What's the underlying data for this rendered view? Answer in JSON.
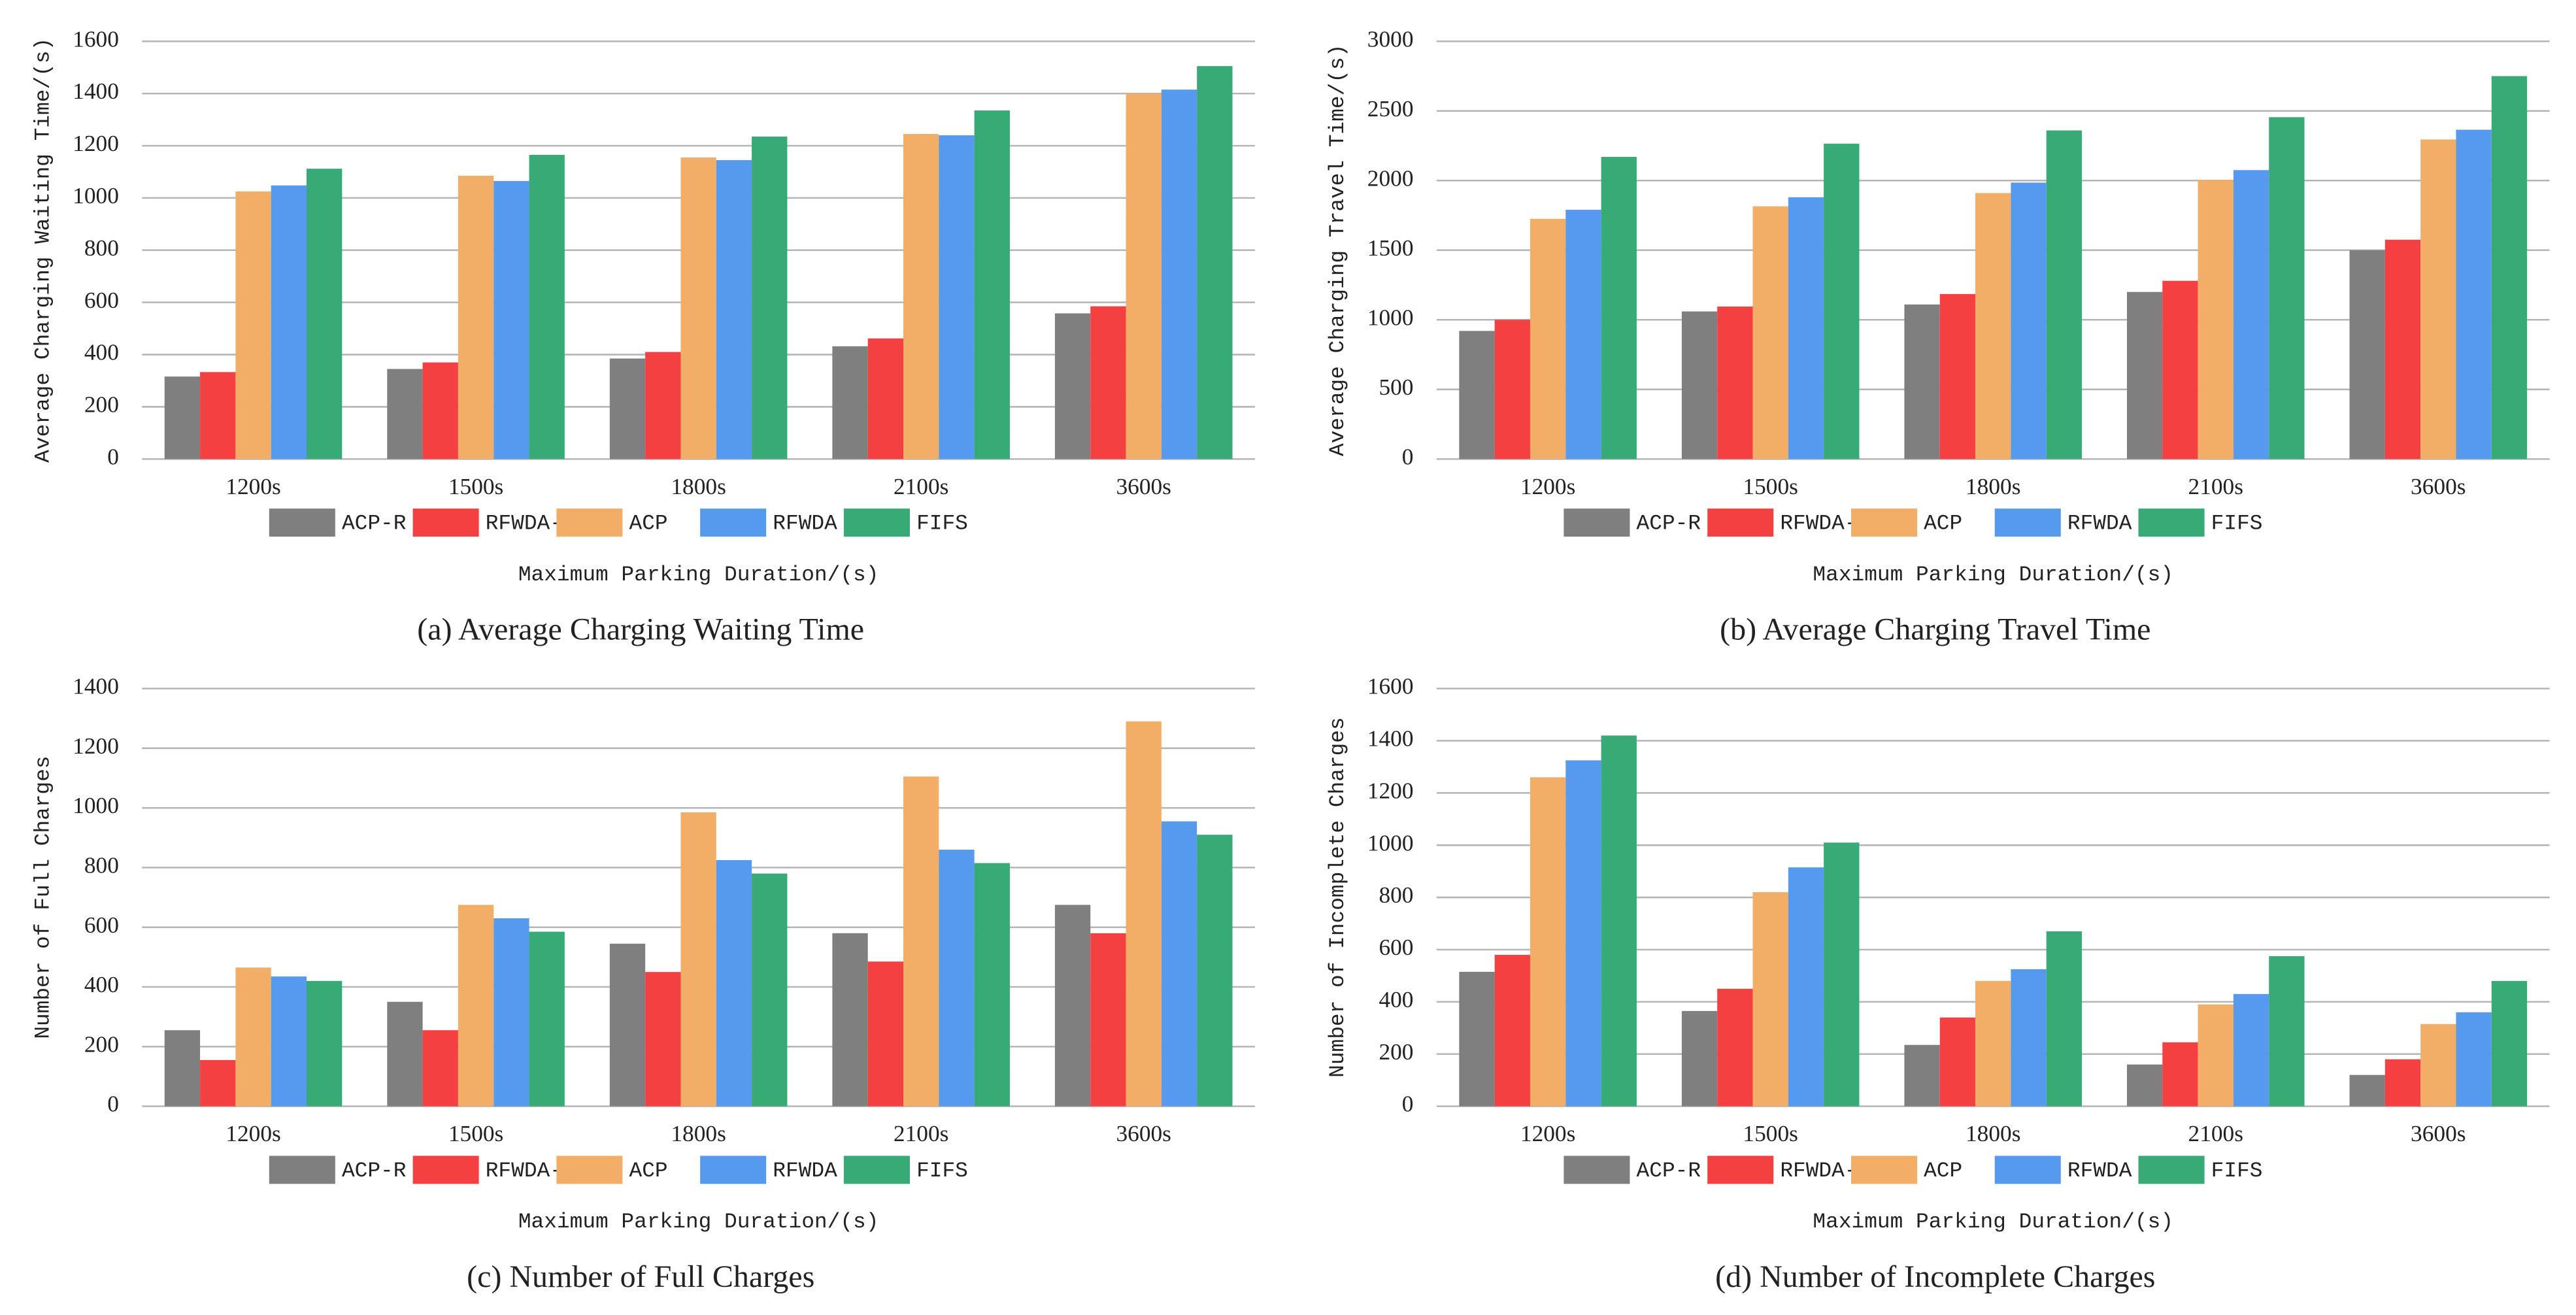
{
  "chart_data": [
    {
      "type": "bar",
      "title": "(a) Average Charging Waiting Time",
      "y_label": "Average Charging Waiting Time/(s)",
      "x_label": "Maximum Parking Duration/(s)",
      "categories": [
        "1200s",
        "1500s",
        "1800s",
        "2100s",
        "3600s"
      ],
      "series": [
        {
          "name": "ACP-R",
          "color": "#7f7f7f",
          "values": [
            316,
            345,
            385,
            432,
            558
          ]
        },
        {
          "name": "RFWDA-R",
          "color": "#f44040",
          "values": [
            333,
            370,
            410,
            462,
            585
          ]
        },
        {
          "name": "ACP",
          "color": "#f2ae67",
          "values": [
            1025,
            1085,
            1155,
            1245,
            1400
          ]
        },
        {
          "name": "RFWDA",
          "color": "#569af0",
          "values": [
            1048,
            1065,
            1145,
            1240,
            1415
          ]
        },
        {
          "name": "FIFS",
          "color": "#37aa76",
          "values": [
            1112,
            1165,
            1235,
            1335,
            1505
          ]
        }
      ],
      "ylim": [
        0,
        1600
      ],
      "yticks": [
        0,
        200,
        400,
        600,
        800,
        1000,
        1200,
        1400,
        1600
      ],
      "grid": true
    },
    {
      "type": "bar",
      "title": "(b) Average Charging Travel Time",
      "y_label": "Average Charging Travel Time/(s)",
      "x_label": "Maximum Parking Duration/(s)",
      "categories": [
        "1200s",
        "1500s",
        "1800s",
        "2100s",
        "3600s"
      ],
      "series": [
        {
          "name": "ACP-R",
          "color": "#7f7f7f",
          "values": [
            920,
            1060,
            1110,
            1200,
            1500
          ]
        },
        {
          "name": "RFWDA-R",
          "color": "#f44040",
          "values": [
            1000,
            1095,
            1185,
            1280,
            1575
          ]
        },
        {
          "name": "ACP",
          "color": "#f2ae67",
          "values": [
            1725,
            1815,
            1910,
            2005,
            2295
          ]
        },
        {
          "name": "RFWDA",
          "color": "#569af0",
          "values": [
            1790,
            1880,
            1985,
            2075,
            2365
          ]
        },
        {
          "name": "FIFS",
          "color": "#37aa76",
          "values": [
            2170,
            2265,
            2360,
            2455,
            2750
          ]
        }
      ],
      "ylim": [
        0,
        3000
      ],
      "yticks": [
        0,
        500,
        1000,
        1500,
        2000,
        2500,
        3000
      ],
      "grid": true
    },
    {
      "type": "bar",
      "title": "(c) Number of Full Charges",
      "y_label": "Number of Full Charges",
      "x_label": "Maximum Parking Duration/(s)",
      "categories": [
        "1200s",
        "1500s",
        "1800s",
        "2100s",
        "3600s"
      ],
      "series": [
        {
          "name": "ACP-R",
          "color": "#7f7f7f",
          "values": [
            255,
            350,
            545,
            580,
            675
          ]
        },
        {
          "name": "RFWDA-R",
          "color": "#f44040",
          "values": [
            155,
            255,
            450,
            485,
            580
          ]
        },
        {
          "name": "ACP",
          "color": "#f2ae67",
          "values": [
            465,
            675,
            985,
            1105,
            1290
          ]
        },
        {
          "name": "RFWDA",
          "color": "#569af0",
          "values": [
            435,
            630,
            825,
            860,
            955
          ]
        },
        {
          "name": "FIFS",
          "color": "#37aa76",
          "values": [
            420,
            585,
            780,
            815,
            910
          ]
        }
      ],
      "ylim": [
        0,
        1400
      ],
      "yticks": [
        0,
        200,
        400,
        600,
        800,
        1000,
        1200,
        1400
      ],
      "grid": true
    },
    {
      "type": "bar",
      "title": "(d) Number of Incomplete Charges",
      "y_label": "Number of Incomplete Charges",
      "x_label": "Maximum Parking Duration/(s)",
      "categories": [
        "1200s",
        "1500s",
        "1800s",
        "2100s",
        "3600s"
      ],
      "series": [
        {
          "name": "ACP-R",
          "color": "#7f7f7f",
          "values": [
            515,
            365,
            235,
            160,
            120
          ]
        },
        {
          "name": "RFWDA-R",
          "color": "#f44040",
          "values": [
            580,
            450,
            340,
            245,
            180
          ]
        },
        {
          "name": "ACP",
          "color": "#f2ae67",
          "values": [
            1260,
            820,
            480,
            390,
            315
          ]
        },
        {
          "name": "RFWDA",
          "color": "#569af0",
          "values": [
            1325,
            915,
            525,
            430,
            360
          ]
        },
        {
          "name": "FIFS",
          "color": "#37aa76",
          "values": [
            1420,
            1010,
            670,
            575,
            480
          ]
        }
      ],
      "ylim": [
        0,
        1600
      ],
      "yticks": [
        0,
        200,
        400,
        600,
        800,
        1000,
        1200,
        1400,
        1600
      ],
      "grid": true
    }
  ]
}
